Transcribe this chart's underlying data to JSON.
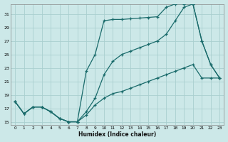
{
  "xlabel": "Humidex (Indice chaleur)",
  "bg_color": "#cce8e8",
  "grid_color": "#aacfcf",
  "line_color": "#1a6b6b",
  "xlim": [
    -0.5,
    23.5
  ],
  "ylim": [
    14.5,
    32.5
  ],
  "xticks": [
    0,
    1,
    2,
    3,
    4,
    5,
    6,
    7,
    8,
    9,
    10,
    11,
    12,
    13,
    14,
    15,
    16,
    17,
    18,
    19,
    20,
    21,
    22,
    23
  ],
  "yticks": [
    15,
    17,
    19,
    21,
    23,
    25,
    27,
    29,
    31
  ],
  "line1_x": [
    0,
    1,
    2,
    3,
    4,
    5,
    6,
    7,
    8,
    9,
    10,
    11,
    12,
    13,
    14,
    15,
    16,
    17,
    18,
    19,
    20,
    21,
    22,
    23
  ],
  "line1_y": [
    18.0,
    16.2,
    17.2,
    17.2,
    16.5,
    15.5,
    15.0,
    15.0,
    16.0,
    17.5,
    18.5,
    19.2,
    19.5,
    20.0,
    20.5,
    21.0,
    21.5,
    22.0,
    22.5,
    23.0,
    23.5,
    21.5,
    21.5,
    21.5
  ],
  "line2_x": [
    0,
    1,
    2,
    3,
    4,
    5,
    6,
    7,
    8,
    9,
    10,
    11,
    12,
    13,
    14,
    15,
    16,
    17,
    18,
    19,
    20,
    21,
    22,
    23
  ],
  "line2_y": [
    18.0,
    16.2,
    17.2,
    17.2,
    16.5,
    15.5,
    15.0,
    15.0,
    16.5,
    18.5,
    22.0,
    24.0,
    25.0,
    25.5,
    26.0,
    26.5,
    27.0,
    28.0,
    30.0,
    32.0,
    32.5,
    27.0,
    23.5,
    21.5
  ],
  "line3_x": [
    0,
    1,
    2,
    3,
    4,
    5,
    6,
    7,
    8,
    9,
    10,
    11,
    12,
    13,
    14,
    15,
    16,
    17,
    18,
    19,
    20,
    21,
    22,
    23
  ],
  "line3_y": [
    18.0,
    16.2,
    17.2,
    17.2,
    16.5,
    15.5,
    15.0,
    15.0,
    22.5,
    25.0,
    30.0,
    30.2,
    30.2,
    30.3,
    30.4,
    30.5,
    30.6,
    32.0,
    32.5,
    32.5,
    32.5,
    27.0,
    23.5,
    21.5
  ]
}
